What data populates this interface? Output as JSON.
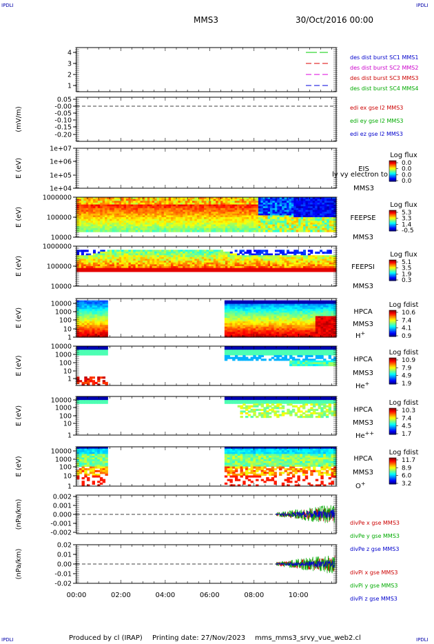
{
  "corner_labels": {
    "top_left": "IPDLI",
    "top_right": "IPDLI",
    "bottom_left": "IPDLI",
    "bottom_right": "IPDLI"
  },
  "header": {
    "spacecraft": "MMS3",
    "date": "30/Oct/2016 00:00"
  },
  "footer": {
    "produced_by": "Produced by cl (IRAP)",
    "printing_date": "Printing date: 27/Nov/2023",
    "file": "mms_mms3_srvy_vue_web2.cl"
  },
  "time_axis": {
    "ticks": [
      "00:00",
      "02:00",
      "04:00",
      "06:00",
      "08:00",
      "10:00"
    ],
    "range_hours": [
      0,
      11.7
    ]
  },
  "chart_data": [
    {
      "id": "burst",
      "type": "line",
      "yticks": [
        "1",
        "2",
        "3",
        "4"
      ],
      "ylabel": "",
      "legend": [
        {
          "text": "des dist burst SC1 MMS1",
          "color": "#0000cc"
        },
        {
          "text": "des dist burst SC2 MMS2",
          "color": "#cc00cc"
        },
        {
          "text": "des dist burst SC3 MMS3",
          "color": "#cc0000"
        },
        {
          "text": "des dist burst SC4 MMS4",
          "color": "#00aa00"
        }
      ],
      "series": [
        {
          "y": 4,
          "color": "#00cc00"
        },
        {
          "y": 3,
          "color": "#dd0000"
        },
        {
          "y": 2,
          "color": "#dd00dd"
        },
        {
          "y": 1,
          "color": "#0000dd"
        }
      ]
    },
    {
      "id": "edi",
      "type": "line",
      "yticks": [
        "0.05",
        "-0.00",
        "-0.05",
        "-0.10",
        "-0.15",
        "-0.20"
      ],
      "ylabel": "(mV/m)",
      "legend": [
        {
          "text": "edi ex gse l2 MMS3",
          "color": "#cc0000"
        },
        {
          "text": "edi ey gse l2 MMS3",
          "color": "#00aa00"
        },
        {
          "text": "edi ez gse l2 MMS3",
          "color": "#0000cc"
        }
      ]
    },
    {
      "id": "eis",
      "type": "heatmap",
      "yticks": [
        "1e+07",
        "1e+06",
        "1e+05",
        "1e+04"
      ],
      "ylabel": "E (eV)",
      "label_lines": [
        "EIS",
        "MMS3"
      ],
      "overlay_text": "ly vy electron to",
      "colorbar": {
        "title": "Log flux",
        "ticks": [
          "0.0",
          "0.0",
          "0.0",
          "0.0"
        ]
      }
    },
    {
      "id": "feepse",
      "type": "heatmap",
      "yticks": [
        "1000000",
        "100000",
        "10000"
      ],
      "ylabel": "E (eV)",
      "label_lines": [
        "FEEPSE",
        "MMS3"
      ],
      "colorbar": {
        "title": "Log flux",
        "ticks": [
          "5.3",
          "3.3",
          "1.4",
          "-0.5"
        ]
      }
    },
    {
      "id": "feepsi",
      "type": "heatmap",
      "yticks": [
        "1000000",
        "100000",
        "10000"
      ],
      "ylabel": "E (eV)",
      "label_lines": [
        "FEEPSI",
        "MMS3"
      ],
      "colorbar": {
        "title": "Log flux",
        "ticks": [
          "5.1",
          "3.5",
          "1.9",
          "0.3"
        ]
      }
    },
    {
      "id": "hpca_h",
      "type": "heatmap",
      "yticks": [
        "10000",
        "1000",
        "100",
        "10",
        "1"
      ],
      "ylabel": "E (eV)",
      "label_lines": [
        "HPCA",
        "MMS3"
      ],
      "species": "H",
      "charge": "+",
      "colorbar": {
        "title": "Log fdist",
        "ticks": [
          "10.6",
          "7.4",
          "4.1",
          "0.9"
        ]
      }
    },
    {
      "id": "hpca_he",
      "type": "heatmap",
      "yticks": [
        "10000",
        "1000",
        "100",
        "10",
        "1"
      ],
      "ylabel": "E (eV)",
      "label_lines": [
        "HPCA",
        "MMS3"
      ],
      "species": "He",
      "charge": "+",
      "colorbar": {
        "title": "Log fdist",
        "ticks": [
          "10.9",
          "7.9",
          "4.9",
          "1.9"
        ]
      }
    },
    {
      "id": "hpca_hepp",
      "type": "heatmap",
      "yticks": [
        "10000",
        "1000",
        "100",
        "10",
        "1"
      ],
      "ylabel": "E (eV)",
      "label_lines": [
        "HPCA",
        "MMS3"
      ],
      "species": "He",
      "charge": "++",
      "colorbar": {
        "title": "Log fdist",
        "ticks": [
          "10.3",
          "7.4",
          "4.5",
          "1.7"
        ]
      }
    },
    {
      "id": "hpca_o",
      "type": "heatmap",
      "yticks": [
        "10000",
        "1000",
        "100",
        "10",
        "1"
      ],
      "ylabel": "E (eV)",
      "label_lines": [
        "HPCA",
        "MMS3"
      ],
      "species": "O",
      "charge": "+",
      "colorbar": {
        "title": "Log fdist",
        "ticks": [
          "11.7",
          "8.9",
          "6.0",
          "3.2"
        ]
      }
    },
    {
      "id": "divpe",
      "type": "line",
      "yticks": [
        "0.002",
        "0.001",
        "0.000",
        "-0.001",
        "-0.002"
      ],
      "ylabel": "(nPa/km)",
      "legend": [
        {
          "text": "divPe x gse MMS3",
          "color": "#cc0000"
        },
        {
          "text": "divPe y gse MMS3",
          "color": "#00aa00"
        },
        {
          "text": "divPe z gse MMS3",
          "color": "#0000cc"
        }
      ]
    },
    {
      "id": "divpi",
      "type": "line",
      "yticks": [
        "0.02",
        "0.01",
        "0.00",
        "-0.01",
        "-0.02"
      ],
      "ylabel": "(nPa/km)",
      "legend": [
        {
          "text": "divPi x gse MMS3",
          "color": "#cc0000"
        },
        {
          "text": "divPi y gse MMS3",
          "color": "#00aa00"
        },
        {
          "text": "divPi z gse MMS3",
          "color": "#0000cc"
        }
      ]
    }
  ]
}
